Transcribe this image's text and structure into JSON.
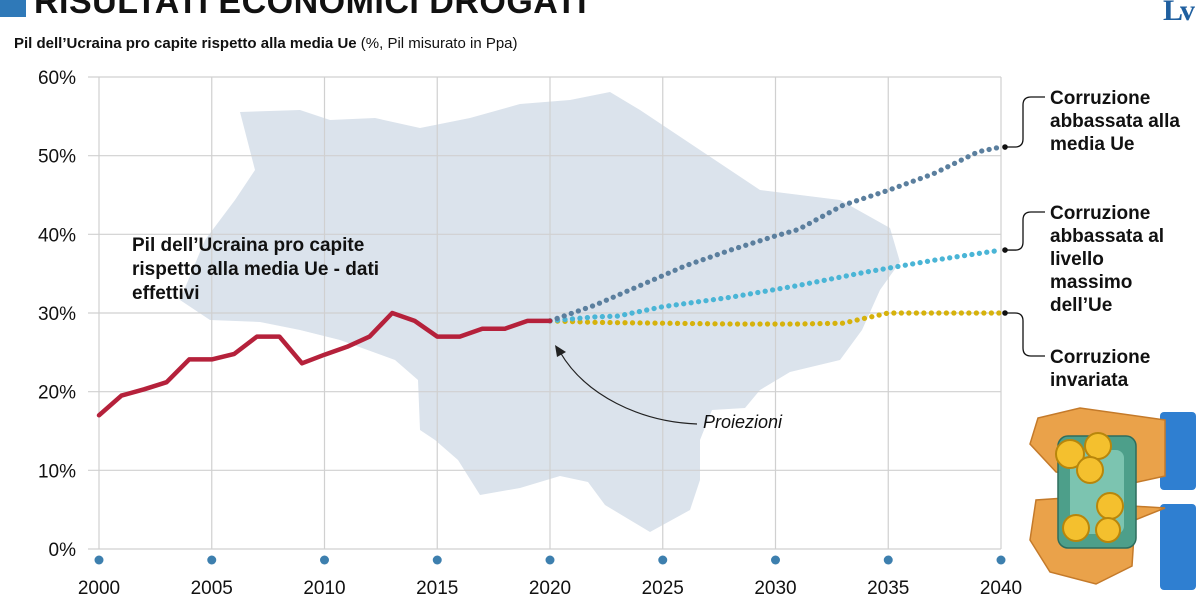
{
  "header": {
    "headline": "RISULTATI ECONOMICI DROGATI",
    "logo": "Lv",
    "subtitle_bold": "Pil dell’Ucraina pro capite rispetto alla media Ue",
    "subtitle_rest": " (%, Pil misurato in Ppa)"
  },
  "annotations": {
    "actual_label": "Pil dell’Ucraina pro capite rispetto alla media Ue - dati effettivi",
    "projections_label": "Proiezioni"
  },
  "colors": {
    "actual": "#b5213b",
    "scenario_eu_average": "#5b7f9e",
    "scenario_eu_max": "#4ab5d6",
    "scenario_unchanged": "#d6b20c",
    "map": "#dbe3ec",
    "grid": "#d0d0d0",
    "accent": "#2f79b8"
  },
  "chart_data": {
    "type": "line",
    "title": "Pil dell’Ucraina pro capite rispetto alla media Ue",
    "xlabel": "",
    "ylabel": "%",
    "xlim": [
      2000,
      2040
    ],
    "ylim": [
      0,
      60
    ],
    "x_ticks": [
      2000,
      2005,
      2010,
      2015,
      2020,
      2025,
      2030,
      2035,
      2040
    ],
    "y_ticks": [
      0,
      10,
      20,
      30,
      40,
      50,
      60
    ],
    "y_tick_labels": [
      "0%",
      "10%",
      "20%",
      "30%",
      "40%",
      "50%",
      "60%"
    ],
    "series": [
      {
        "name": "Pil dell’Ucraina pro capite rispetto alla media Ue - dati effettivi",
        "style": "solid",
        "x": [
          2000,
          2001,
          2002,
          2003,
          2004,
          2005,
          2006,
          2007,
          2008,
          2009,
          2010,
          2011,
          2012,
          2013,
          2014,
          2015,
          2016,
          2017,
          2018,
          2019,
          2020
        ],
        "y": [
          17,
          19.5,
          20.3,
          21.2,
          24.1,
          24.1,
          24.8,
          27,
          27,
          23.6,
          24.7,
          25.7,
          27,
          30,
          29,
          27,
          27,
          28,
          28,
          29,
          29
        ]
      },
      {
        "name": "Corruzione abbassata alla media Ue",
        "style": "dotted",
        "x": [
          2020,
          2022,
          2024,
          2026,
          2028,
          2030,
          2031,
          2033,
          2035,
          2037,
          2039,
          2040
        ],
        "y": [
          29,
          31,
          33.5,
          36,
          38,
          39.8,
          40.6,
          43.7,
          45.6,
          47.7,
          50.5,
          51.1
        ]
      },
      {
        "name": "Corruzione abbassata al livello massimo dell’Ue",
        "style": "dotted",
        "x": [
          2020,
          2022,
          2023,
          2025,
          2028,
          2031,
          2034,
          2037,
          2040
        ],
        "y": [
          29,
          29.5,
          29.6,
          30.8,
          32,
          33.5,
          35.2,
          36.7,
          38
        ]
      },
      {
        "name": "Corruzione invariata",
        "style": "dotted",
        "x": [
          2020,
          2022,
          2025,
          2028,
          2031,
          2033,
          2035,
          2037,
          2040
        ],
        "y": [
          29,
          28.8,
          28.7,
          28.6,
          28.6,
          28.7,
          30,
          30,
          30
        ]
      }
    ],
    "legend": [
      "Corruzione abbassata alla media Ue",
      "Corruzione abbassata al livello massimo dell’Ue",
      "Corruzione invariata"
    ]
  }
}
